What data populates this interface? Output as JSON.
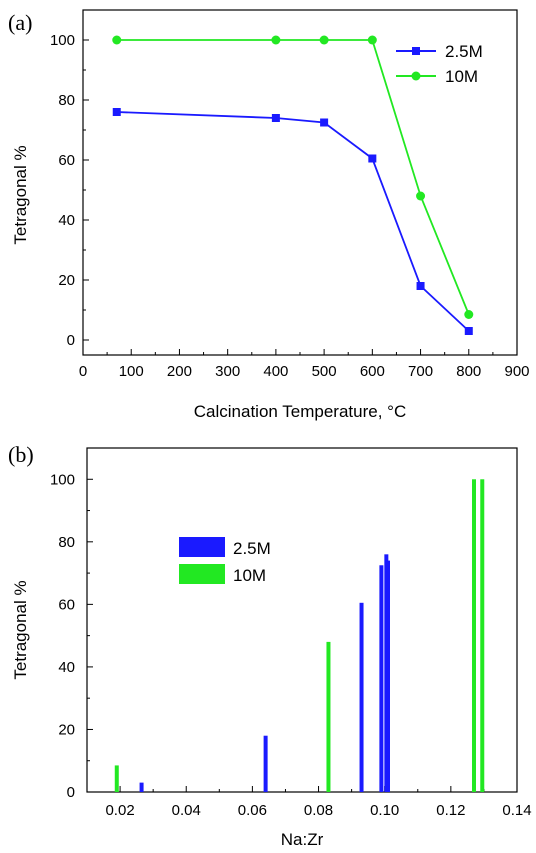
{
  "chart_data": [
    {
      "type": "line",
      "panel_label": "(a)",
      "xlabel": "Calcination Temperature, °C",
      "ylabel": "Tetragonal %",
      "xlim": [
        0,
        900
      ],
      "ylim": [
        -5,
        110
      ],
      "xticks": [
        "0",
        "100",
        "200",
        "300",
        "400",
        "500",
        "600",
        "700",
        "800",
        "900"
      ],
      "yticks": [
        "0",
        "20",
        "40",
        "60",
        "80",
        "100"
      ],
      "legend_position": "top-right",
      "grid": false,
      "series": [
        {
          "name": "2.5M",
          "color": "#1a1aff",
          "marker": "square",
          "x": [
            70,
            400,
            500,
            600,
            700,
            800
          ],
          "y": [
            76,
            74,
            72.5,
            60.5,
            18,
            3
          ]
        },
        {
          "name": "10M",
          "color": "#22e822",
          "marker": "circle",
          "x": [
            70,
            400,
            500,
            600,
            700,
            800
          ],
          "y": [
            100,
            100,
            100,
            100,
            48,
            8.5
          ]
        }
      ]
    },
    {
      "type": "bar",
      "panel_label": "(b)",
      "xlabel": "Na:Zr",
      "ylabel": "Tetragonal %",
      "xlim": [
        0.01,
        0.14
      ],
      "ylim": [
        0,
        110
      ],
      "xticks": [
        "0.02",
        "0.04",
        "0.06",
        "0.08",
        "0.10",
        "0.12",
        "0.14"
      ],
      "yticks": [
        "0",
        "20",
        "40",
        "60",
        "80",
        "100"
      ],
      "legend_position": "upper-left",
      "grid": false,
      "series": [
        {
          "name": "2.5M",
          "color": "#1a1aff",
          "x": [
            0.0265,
            0.064,
            0.093,
            0.099,
            0.1005,
            0.101
          ],
          "y": [
            3,
            18,
            60.5,
            72.5,
            76,
            74
          ]
        },
        {
          "name": "10M",
          "color": "#22e822",
          "x": [
            0.019,
            0.083,
            0.127,
            0.1295
          ],
          "y": [
            8.5,
            48,
            100,
            100
          ]
        }
      ]
    }
  ]
}
